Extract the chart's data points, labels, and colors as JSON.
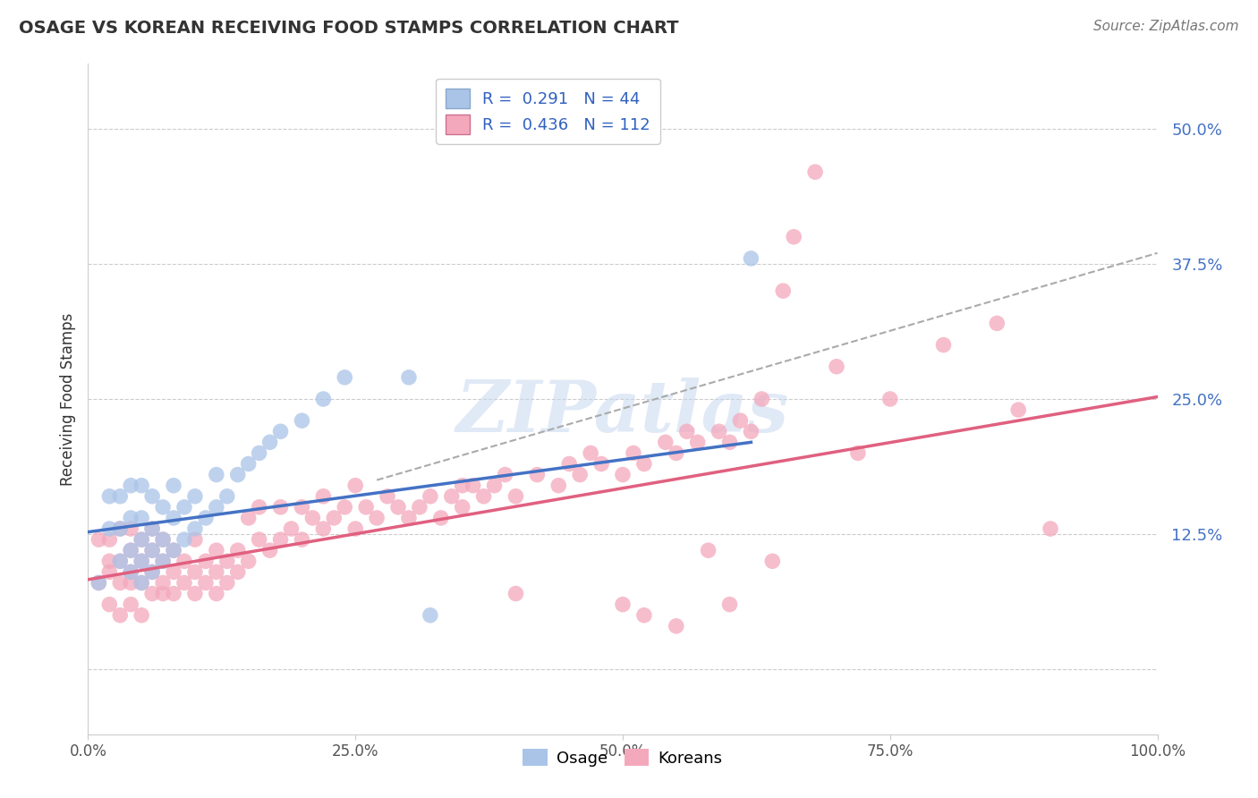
{
  "title": "OSAGE VS KOREAN RECEIVING FOOD STAMPS CORRELATION CHART",
  "source": "Source: ZipAtlas.com",
  "ylabel": "Receiving Food Stamps",
  "y_ticks": [
    0.0,
    0.125,
    0.25,
    0.375,
    0.5
  ],
  "y_tick_labels": [
    "",
    "12.5%",
    "25.0%",
    "37.5%",
    "50.0%"
  ],
  "x_ticks": [
    0.0,
    0.25,
    0.5,
    0.75,
    1.0
  ],
  "x_tick_labels": [
    "0.0%",
    "25.0%",
    "50.0%",
    "75.0%",
    "100.0%"
  ],
  "xlim": [
    0.0,
    1.0
  ],
  "ylim": [
    -0.06,
    0.56
  ],
  "legend_blue_text": "R =  0.291   N = 44",
  "legend_pink_text": "R =  0.436   N = 112",
  "legend_label_blue": "Osage",
  "legend_label_pink": "Koreans",
  "blue_scatter_color": "#aac4e8",
  "pink_scatter_color": "#f4a8bc",
  "blue_line_color": "#4472c4",
  "pink_line_color": "#e06080",
  "dashed_line_color": "#aaaaaa",
  "watermark_text": "ZIPatlas",
  "osage_x": [
    0.01,
    0.02,
    0.02,
    0.03,
    0.03,
    0.03,
    0.04,
    0.04,
    0.04,
    0.04,
    0.05,
    0.05,
    0.05,
    0.05,
    0.05,
    0.06,
    0.06,
    0.06,
    0.06,
    0.07,
    0.07,
    0.07,
    0.08,
    0.08,
    0.08,
    0.09,
    0.09,
    0.1,
    0.1,
    0.11,
    0.12,
    0.12,
    0.13,
    0.14,
    0.15,
    0.16,
    0.17,
    0.18,
    0.2,
    0.22,
    0.24,
    0.3,
    0.32,
    0.62
  ],
  "osage_y": [
    0.08,
    0.13,
    0.16,
    0.1,
    0.13,
    0.16,
    0.09,
    0.11,
    0.14,
    0.17,
    0.08,
    0.1,
    0.12,
    0.14,
    0.17,
    0.09,
    0.11,
    0.13,
    0.16,
    0.1,
    0.12,
    0.15,
    0.11,
    0.14,
    0.17,
    0.12,
    0.15,
    0.13,
    0.16,
    0.14,
    0.15,
    0.18,
    0.16,
    0.18,
    0.19,
    0.2,
    0.21,
    0.22,
    0.23,
    0.25,
    0.27,
    0.27,
    0.05,
    0.38
  ],
  "korean_x": [
    0.01,
    0.01,
    0.02,
    0.02,
    0.02,
    0.02,
    0.03,
    0.03,
    0.03,
    0.03,
    0.04,
    0.04,
    0.04,
    0.04,
    0.04,
    0.05,
    0.05,
    0.05,
    0.05,
    0.06,
    0.06,
    0.06,
    0.06,
    0.07,
    0.07,
    0.07,
    0.07,
    0.08,
    0.08,
    0.08,
    0.09,
    0.09,
    0.1,
    0.1,
    0.1,
    0.11,
    0.11,
    0.12,
    0.12,
    0.12,
    0.13,
    0.13,
    0.14,
    0.14,
    0.15,
    0.15,
    0.16,
    0.16,
    0.17,
    0.18,
    0.18,
    0.19,
    0.2,
    0.2,
    0.21,
    0.22,
    0.22,
    0.23,
    0.24,
    0.25,
    0.25,
    0.26,
    0.27,
    0.28,
    0.29,
    0.3,
    0.31,
    0.32,
    0.33,
    0.34,
    0.35,
    0.36,
    0.37,
    0.38,
    0.39,
    0.4,
    0.42,
    0.44,
    0.45,
    0.46,
    0.47,
    0.48,
    0.5,
    0.51,
    0.52,
    0.54,
    0.55,
    0.56,
    0.57,
    0.58,
    0.59,
    0.6,
    0.61,
    0.62,
    0.63,
    0.64,
    0.65,
    0.66,
    0.68,
    0.7,
    0.72,
    0.75,
    0.8,
    0.85,
    0.87,
    0.9,
    0.5,
    0.55,
    0.6,
    0.35,
    0.4,
    0.52
  ],
  "korean_y": [
    0.08,
    0.12,
    0.06,
    0.09,
    0.12,
    0.1,
    0.05,
    0.08,
    0.1,
    0.13,
    0.06,
    0.09,
    0.11,
    0.13,
    0.08,
    0.05,
    0.08,
    0.1,
    0.12,
    0.07,
    0.09,
    0.11,
    0.13,
    0.08,
    0.1,
    0.12,
    0.07,
    0.09,
    0.11,
    0.07,
    0.08,
    0.1,
    0.07,
    0.09,
    0.12,
    0.08,
    0.1,
    0.07,
    0.09,
    0.11,
    0.08,
    0.1,
    0.09,
    0.11,
    0.1,
    0.14,
    0.12,
    0.15,
    0.11,
    0.12,
    0.15,
    0.13,
    0.12,
    0.15,
    0.14,
    0.13,
    0.16,
    0.14,
    0.15,
    0.13,
    0.17,
    0.15,
    0.14,
    0.16,
    0.15,
    0.14,
    0.15,
    0.16,
    0.14,
    0.16,
    0.15,
    0.17,
    0.16,
    0.17,
    0.18,
    0.16,
    0.18,
    0.17,
    0.19,
    0.18,
    0.2,
    0.19,
    0.18,
    0.2,
    0.19,
    0.21,
    0.2,
    0.22,
    0.21,
    0.11,
    0.22,
    0.21,
    0.23,
    0.22,
    0.25,
    0.1,
    0.35,
    0.4,
    0.46,
    0.28,
    0.2,
    0.25,
    0.3,
    0.32,
    0.24,
    0.13,
    0.06,
    0.04,
    0.06,
    0.17,
    0.07,
    0.05
  ],
  "blue_trend_x": [
    0.0,
    0.62
  ],
  "blue_trend_y": [
    0.127,
    0.21
  ],
  "pink_trend_x": [
    0.0,
    1.0
  ],
  "pink_trend_y": [
    0.083,
    0.252
  ],
  "dashed_trend_x": [
    0.27,
    1.0
  ],
  "dashed_trend_y": [
    0.175,
    0.385
  ]
}
